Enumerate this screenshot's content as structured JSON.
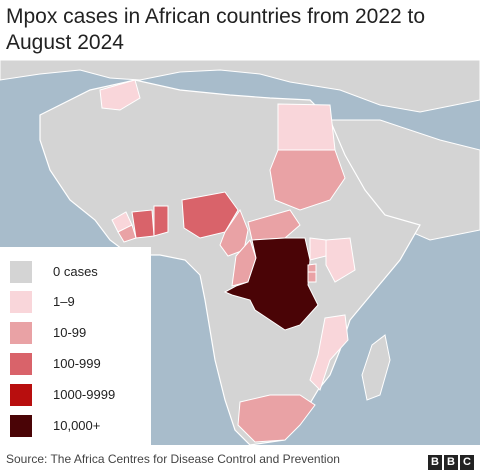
{
  "title": "Mpox cases in African countries from 2022 to August 2024",
  "legend": [
    {
      "label": "0 cases",
      "color": "#d4d4d4"
    },
    {
      "label": "1–9",
      "color": "#f9d6da"
    },
    {
      "label": "10-99",
      "color": "#e9a2a5"
    },
    {
      "label": "100-999",
      "color": "#d9636a"
    },
    {
      "label": "1000-9999",
      "color": "#b80e0e"
    },
    {
      "label": "10,000+",
      "color": "#4a0406"
    }
  ],
  "map_regions": [
    {
      "name": "Morocco",
      "category": "1–9"
    },
    {
      "name": "Egypt",
      "category": "1–9"
    },
    {
      "name": "Sudan",
      "category": "10-99"
    },
    {
      "name": "Guinea",
      "category": "1–9"
    },
    {
      "name": "Liberia",
      "category": "10-99"
    },
    {
      "name": "Ivory Coast",
      "category": "100-999"
    },
    {
      "name": "Ghana",
      "category": "100-999"
    },
    {
      "name": "Nigeria",
      "category": "100-999"
    },
    {
      "name": "Cameroon",
      "category": "10-99"
    },
    {
      "name": "Central African Republic",
      "category": "10-99"
    },
    {
      "name": "Republic of the Congo",
      "category": "10-99"
    },
    {
      "name": "Democratic Republic of the Congo",
      "category": "10,000+"
    },
    {
      "name": "Uganda",
      "category": "1–9"
    },
    {
      "name": "Kenya",
      "category": "1–9"
    },
    {
      "name": "Rwanda",
      "category": "10-99"
    },
    {
      "name": "Burundi",
      "category": "10-99"
    },
    {
      "name": "Mozambique",
      "category": "1–9"
    },
    {
      "name": "South Africa",
      "category": "10-99"
    }
  ],
  "source": "Source: The Africa Centres for Disease Control and Prevention",
  "brand": [
    "B",
    "B",
    "C"
  ]
}
